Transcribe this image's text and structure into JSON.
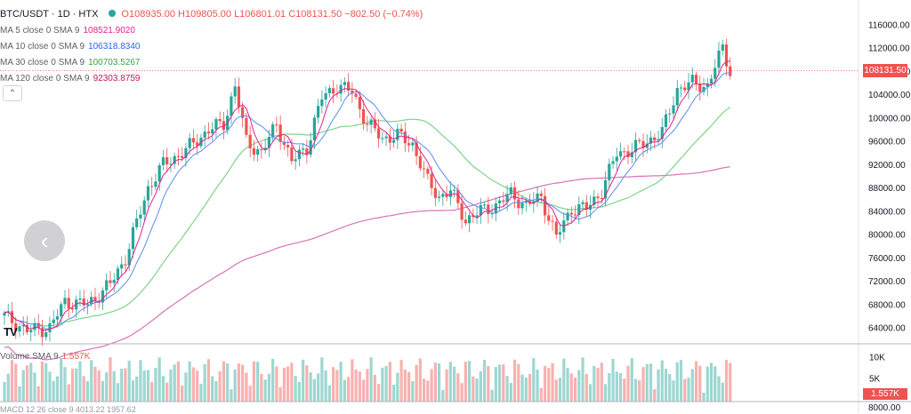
{
  "header": {
    "symbol": "BTC/USDT · 1D · HTX",
    "open": "O108935.00",
    "high": "H109805.00",
    "low": "L106801.01",
    "close": "C108131.50",
    "change": "−802.50 (−0.74%)"
  },
  "indicators": [
    {
      "label": "MA 5 close 0 SMA 9",
      "value": "108521.9020",
      "color": "#e91e8c"
    },
    {
      "label": "MA 10 close 0 SMA 9",
      "value": "106318.8340",
      "color": "#2962ff"
    },
    {
      "label": "MA 30 close 0 SMA 9",
      "value": "100703.5267",
      "color": "#4caf50"
    },
    {
      "label": "MA 120 close 0 SMA 9",
      "value": "92303.8759",
      "color": "#c2185b"
    }
  ],
  "price_axis": {
    "ticks": [
      "116000.00",
      "112000.00",
      "108000.00",
      "104000.00",
      "100000.00",
      "96000.00",
      "92000.00",
      "88000.00",
      "84000.00",
      "80000.00",
      "76000.00",
      "72000.00",
      "68000.00",
      "64000.00"
    ],
    "last_price": "108131.50"
  },
  "volume": {
    "label": "Volume SMA 9",
    "value": "1.557K",
    "ticks": [
      "10K",
      "5K"
    ],
    "last_label": "1.557K"
  },
  "macd_partial": "MACD 12 26 close 9   4013.22  1957.62",
  "bottom_axis_partial": "8000.00",
  "logo_text": "TV",
  "icons": {
    "collapse": "chevron-up-icon",
    "nav": "chevron-left-icon",
    "status": "status-dot-icon"
  },
  "colors": {
    "up": "#26a69a",
    "down": "#ef5350",
    "ma5": "#e91e8c",
    "ma10": "#5b8def",
    "ma30": "#7fd28b",
    "ma120": "#d873b5"
  }
}
